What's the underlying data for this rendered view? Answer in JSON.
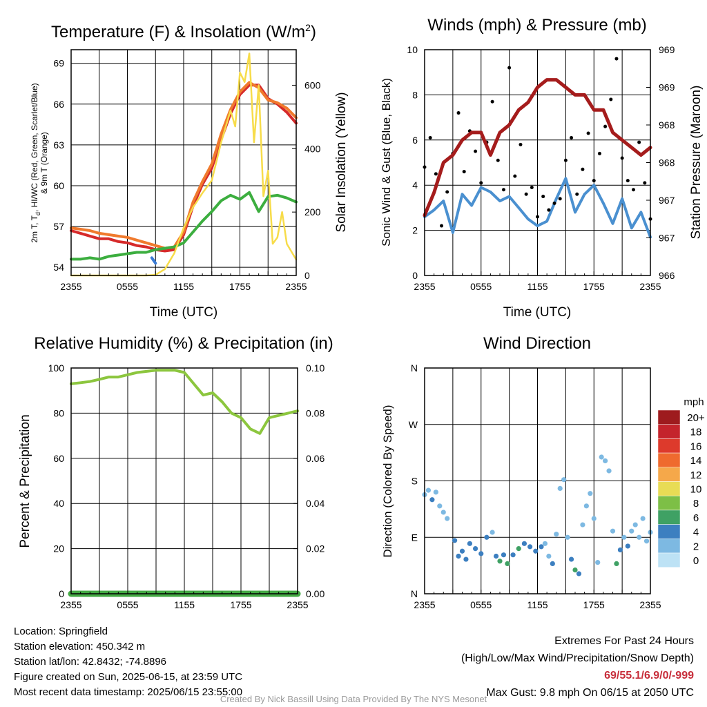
{
  "chart_data": [
    {
      "type": "line",
      "title": "Temperature (F) & Insolation (W/m²)",
      "xlabel": "Time (UTC)",
      "ylabel_left": "2m T, Td, HI/WC (Red, Green, Scarlet/Blue) & 9m T (Orange)",
      "ylabel_right": "Solar Insolation (Yellow)",
      "x_ticks": [
        "2355",
        "0555",
        "1155",
        "1755",
        "2355"
      ],
      "y_ticks_left": [
        54,
        57,
        60,
        63,
        66,
        69
      ],
      "y_ticks_right": [
        0,
        200,
        400,
        600
      ],
      "ylim_left": [
        53.4,
        70
      ],
      "ylim_right": [
        0,
        712
      ],
      "xlim": [
        0,
        24
      ],
      "grid": true,
      "series": [
        {
          "axis": "left",
          "color": "#d62a2a",
          "x": [
            0,
            1,
            2,
            3,
            4,
            5,
            6,
            7,
            8,
            9,
            10,
            11,
            12,
            13,
            14,
            15,
            16,
            17,
            18,
            19,
            20,
            21,
            22,
            23,
            24
          ],
          "y": [
            56.7,
            56.5,
            56.3,
            56.1,
            56.1,
            55.9,
            55.8,
            55.6,
            55.5,
            55.3,
            55.2,
            55.3,
            56.4,
            58.5,
            60.1,
            61.3,
            63.4,
            65.3,
            66.7,
            67.4,
            67.4,
            66.4,
            66.0,
            65.4,
            64.6
          ]
        },
        {
          "axis": "left",
          "color": "#f07a2d",
          "x": [
            0,
            1,
            2,
            3,
            4,
            5,
            6,
            7,
            8,
            9,
            10,
            11,
            12,
            13,
            14,
            15,
            16,
            17,
            18,
            19,
            20,
            21,
            22,
            23,
            24
          ],
          "y": [
            56.9,
            56.8,
            56.7,
            56.5,
            56.4,
            56.3,
            56.2,
            56.0,
            55.8,
            55.6,
            55.4,
            55.5,
            56.6,
            58.8,
            60.3,
            61.6,
            63.8,
            65.6,
            66.9,
            67.6,
            67.2,
            66.3,
            66.1,
            65.7,
            65.0
          ]
        },
        {
          "axis": "left",
          "color": "#3cae3f",
          "x": [
            0,
            1,
            2,
            3,
            4,
            5,
            6,
            7,
            8,
            9,
            10,
            11,
            12,
            13,
            14,
            15,
            16,
            17,
            18,
            19,
            20,
            21,
            22,
            23,
            24
          ],
          "y": [
            54.6,
            54.6,
            54.7,
            54.6,
            54.8,
            54.9,
            55.0,
            55.1,
            55.1,
            55.3,
            55.4,
            55.5,
            55.8,
            56.6,
            57.4,
            58.1,
            58.9,
            59.3,
            59.0,
            59.5,
            58.1,
            59.2,
            59.3,
            59.1,
            58.8
          ]
        },
        {
          "axis": "left",
          "color": "#3a7bd5",
          "x": [
            8.6,
            8.8,
            9.0
          ],
          "y": [
            54.7,
            54.5,
            54.3
          ]
        },
        {
          "axis": "right",
          "color": "#f7dc4a",
          "x": [
            0,
            1,
            2,
            3,
            4,
            5,
            6,
            7,
            8,
            9,
            10,
            11,
            12,
            13,
            14,
            15,
            16,
            17,
            17.5,
            18,
            18.5,
            19,
            19.5,
            20,
            20.5,
            21,
            21.5,
            22,
            22.5,
            23,
            24
          ],
          "y": [
            0,
            0,
            0,
            0,
            0,
            0,
            0,
            0,
            0,
            2,
            20,
            70,
            150,
            215,
            260,
            300,
            420,
            520,
            470,
            640,
            610,
            700,
            420,
            600,
            250,
            330,
            100,
            120,
            200,
            100,
            50
          ]
        }
      ]
    },
    {
      "type": "line",
      "title": "Winds (mph) & Pressure (mb)",
      "xlabel": "Time (UTC)",
      "ylabel_left": "Sonic Wind & Gust (Blue, Black)",
      "ylabel_right": "Station Pressure (Maroon)",
      "x_ticks": [
        "2355",
        "0555",
        "1155",
        "1755",
        "2355"
      ],
      "y_ticks_left": [
        0,
        2,
        4,
        6,
        8,
        10
      ],
      "y_ticks_right": [
        "966",
        "967",
        "967",
        "968",
        "968",
        "969",
        "969"
      ],
      "ylim_left": [
        0,
        10
      ],
      "ylim_right": [
        966,
        969
      ],
      "xlim": [
        0,
        24
      ],
      "grid": true,
      "series": [
        {
          "axis": "left",
          "color": "#4a90d0",
          "x": [
            0,
            1,
            2,
            3,
            4,
            5,
            6,
            7,
            8,
            9,
            10,
            11,
            12,
            13,
            14,
            15,
            16,
            17,
            18,
            19,
            20,
            21,
            22,
            23,
            24
          ],
          "y": [
            2.6,
            2.9,
            3.3,
            1.9,
            3.6,
            3.1,
            3.9,
            3.7,
            3.3,
            3.5,
            3.0,
            2.5,
            2.2,
            2.4,
            3.4,
            4.3,
            2.8,
            3.6,
            4.0,
            3.2,
            2.3,
            3.4,
            2.1,
            2.8,
            1.7
          ]
        },
        {
          "axis": "left",
          "color": "#000000",
          "style": "points",
          "x": [
            0,
            0.6,
            1.2,
            1.8,
            2.4,
            3,
            3.6,
            4.2,
            4.8,
            5.4,
            6,
            6.6,
            7.2,
            7.8,
            8.4,
            9,
            9.6,
            10.2,
            10.8,
            11.4,
            12,
            12.6,
            13.2,
            13.8,
            14.4,
            15,
            15.6,
            16.2,
            16.8,
            17.4,
            18,
            18.6,
            19.2,
            19.8,
            20.4,
            21,
            21.6,
            22.2,
            22.8,
            23.4,
            24
          ],
          "y": [
            4.8,
            6.1,
            4.5,
            2.2,
            3.7,
            5.4,
            7.2,
            4.6,
            6.4,
            5.5,
            4.1,
            5.9,
            7.7,
            5.1,
            3.8,
            9.2,
            4.4,
            5.8,
            3.6,
            3.9,
            2.6,
            3.5,
            2.9,
            3.2,
            3.4,
            5.1,
            6.1,
            3.6,
            4.7,
            6.3,
            4.2,
            5.4,
            6.6,
            7.8,
            9.6,
            5.2,
            4.2,
            3.8,
            5.9,
            4.1,
            2.5
          ]
        },
        {
          "axis": "right",
          "color": "#a51c1c",
          "x": [
            0,
            1,
            2,
            3,
            4,
            5,
            6,
            7,
            8,
            9,
            10,
            11,
            12,
            13,
            14,
            15,
            16,
            17,
            18,
            19,
            20,
            21,
            22,
            23,
            24
          ],
          "y": [
            966.8,
            967.1,
            967.5,
            967.6,
            967.8,
            967.9,
            967.9,
            967.6,
            967.9,
            968.0,
            968.2,
            968.3,
            968.5,
            968.6,
            968.6,
            968.5,
            968.4,
            968.4,
            968.2,
            968.2,
            967.9,
            967.8,
            967.7,
            967.6,
            967.7
          ]
        }
      ]
    },
    {
      "type": "line",
      "title": "Relative Humidity (%) & Precipitation (in)",
      "ylabel_left": "Percent & Precipitation",
      "x_ticks": [
        "2355",
        "0555",
        "1155",
        "1755",
        "2355"
      ],
      "y_ticks_left": [
        0,
        20,
        40,
        60,
        80,
        100
      ],
      "y_ticks_right": [
        "0.00",
        "0.02",
        "0.04",
        "0.06",
        "0.08",
        "0.10"
      ],
      "ylim_left": [
        0,
        100
      ],
      "ylim_right": [
        0,
        0.1
      ],
      "xlim": [
        0,
        24
      ],
      "grid": true,
      "series": [
        {
          "axis": "left",
          "color": "#8cc63e",
          "x": [
            0,
            1,
            2,
            3,
            4,
            5,
            6,
            7,
            8,
            9,
            10,
            11,
            12,
            13,
            14,
            15,
            16,
            17,
            18,
            19,
            20,
            21,
            22,
            23,
            24
          ],
          "y": [
            93,
            93.5,
            94,
            95,
            96,
            96,
            97,
            98,
            98.5,
            99,
            99,
            99,
            98,
            93,
            88,
            89,
            85,
            80,
            78,
            73,
            71,
            78,
            79,
            80,
            81
          ]
        },
        {
          "axis": "right",
          "color": "#44aa44",
          "x": [
            0,
            24
          ],
          "y": [
            0,
            0
          ]
        }
      ]
    },
    {
      "type": "scatter",
      "title": "Wind Direction",
      "ylabel_left": "Direction (Colored By Speed)",
      "x_ticks": [
        "2355",
        "0555",
        "1155",
        "1755",
        "2355"
      ],
      "y_ticks_left": [
        "N",
        "E",
        "S",
        "W",
        "N"
      ],
      "ylim_left": [
        0,
        360
      ],
      "xlim": [
        0,
        24
      ],
      "grid": true,
      "points": [
        [
          0,
          158,
          2
        ],
        [
          0.4,
          165,
          2
        ],
        [
          0.8,
          150,
          3
        ],
        [
          1.2,
          162,
          1
        ],
        [
          1.6,
          140,
          2
        ],
        [
          2.0,
          130,
          1
        ],
        [
          2.4,
          120,
          2
        ],
        [
          3.2,
          85,
          3
        ],
        [
          3.6,
          60,
          3
        ],
        [
          4.0,
          68,
          4
        ],
        [
          4.4,
          55,
          3
        ],
        [
          4.8,
          80,
          4
        ],
        [
          5.4,
          72,
          3
        ],
        [
          6.0,
          64,
          4
        ],
        [
          6.6,
          90,
          3
        ],
        [
          7.2,
          98,
          2
        ],
        [
          7.6,
          60,
          4
        ],
        [
          8.0,
          52,
          5
        ],
        [
          8.4,
          62,
          4
        ],
        [
          8.8,
          48,
          6
        ],
        [
          9.4,
          62,
          4
        ],
        [
          10.0,
          72,
          5
        ],
        [
          10.6,
          80,
          4
        ],
        [
          11.2,
          75,
          4
        ],
        [
          11.8,
          68,
          4
        ],
        [
          12.4,
          75,
          3
        ],
        [
          12.8,
          80,
          2
        ],
        [
          13.2,
          60,
          2
        ],
        [
          13.6,
          48,
          3
        ],
        [
          14.0,
          95,
          2
        ],
        [
          14.4,
          168,
          2
        ],
        [
          14.8,
          182,
          2
        ],
        [
          15.2,
          90,
          2
        ],
        [
          15.6,
          55,
          3
        ],
        [
          16.0,
          38,
          6
        ],
        [
          16.4,
          32,
          3
        ],
        [
          16.8,
          110,
          2
        ],
        [
          17.2,
          140,
          2
        ],
        [
          17.6,
          160,
          2
        ],
        [
          18.0,
          120,
          2
        ],
        [
          18.4,
          50,
          2
        ],
        [
          18.8,
          218,
          2
        ],
        [
          19.2,
          212,
          1
        ],
        [
          19.6,
          196,
          2
        ],
        [
          20.0,
          100,
          2
        ],
        [
          20.4,
          48,
          6
        ],
        [
          20.8,
          70,
          3
        ],
        [
          21.2,
          90,
          2
        ],
        [
          21.6,
          76,
          3
        ],
        [
          22.0,
          100,
          2
        ],
        [
          22.4,
          110,
          1
        ],
        [
          22.8,
          90,
          2
        ],
        [
          23.2,
          120,
          2
        ],
        [
          23.6,
          84,
          2
        ],
        [
          24,
          98,
          2
        ]
      ]
    }
  ],
  "legend": {
    "title": "mph",
    "labels": [
      "20+",
      "18",
      "16",
      "14",
      "12",
      "10",
      "8",
      "6",
      "4",
      "2",
      "0"
    ],
    "colors": [
      "#9e1b1e",
      "#c4242c",
      "#dd3a2c",
      "#ef6a2e",
      "#f5a84a",
      "#e8dc55",
      "#7dbf46",
      "#3fa164",
      "#3c7fc0",
      "#7db9e2",
      "#bde2f5"
    ]
  },
  "info": {
    "location": "Location: Springfield",
    "elevation": "Station elevation: 450.342 m",
    "latlon": "Station lat/lon: 42.8432; -74.8896",
    "created": "Figure created on Sun, 2025-06-15, at 23:59 UTC",
    "recent": "Most recent data timestamp: 2025/06/15 23:55:00"
  },
  "extremes": {
    "title": "Extremes For Past 24 Hours",
    "subtitle": "(High/Low/Max Wind/Precipitation/Snow Depth)",
    "values": "69/55.1/6.9/0/-999",
    "gust": "Max Gust: 9.8 mph On 06/15 at 2050 UTC"
  },
  "credit": "Created By Nick Bassill Using Data Provided By The NYS Mesonet"
}
